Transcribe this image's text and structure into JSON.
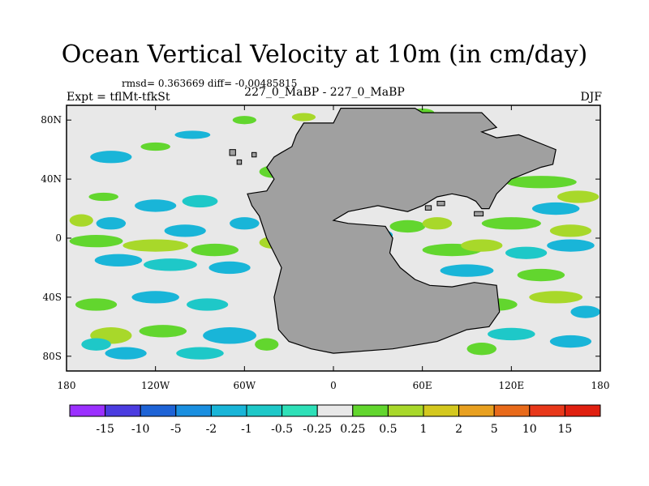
{
  "chart_data": {
    "type": "heatmap",
    "title": "Ocean Vertical Velocity at 10m (in cm/day)",
    "stats_line": "rmsd= 0.363669 diff= -0.00485815",
    "experiment_label": "Expt = tflMt-tfkSt",
    "comparison_label": "227_0_MaBP - 227_0_MaBP",
    "season_label": "DJF",
    "x_range": [
      -180,
      180
    ],
    "y_range": [
      -90,
      90
    ],
    "x_ticks": [
      {
        "value": -180,
        "label": "180"
      },
      {
        "value": -120,
        "label": "120W"
      },
      {
        "value": -60,
        "label": "60W"
      },
      {
        "value": 0,
        "label": "0"
      },
      {
        "value": 60,
        "label": "60E"
      },
      {
        "value": 120,
        "label": "120E"
      },
      {
        "value": 180,
        "label": "180"
      }
    ],
    "y_ticks": [
      {
        "value": 80,
        "label": "80N"
      },
      {
        "value": 40,
        "label": "40N"
      },
      {
        "value": 0,
        "label": "0"
      },
      {
        "value": -40,
        "label": "40S"
      },
      {
        "value": -80,
        "label": "80S"
      }
    ],
    "colorbar": {
      "levels": [
        "-15",
        "-10",
        "-5",
        "-2",
        "-1",
        "-0.5",
        "-0.25",
        "0.25",
        "0.5",
        "1",
        "2",
        "5",
        "10",
        "15"
      ],
      "colors": [
        "#9b30ff",
        "#4b3ce0",
        "#1e63d6",
        "#1a8fe0",
        "#19b5d8",
        "#1ec8c8",
        "#2ee0b8",
        "#e8e8e8",
        "#62d62e",
        "#a8d82a",
        "#d4c81e",
        "#e8a020",
        "#e86a1a",
        "#e8381a",
        "#e02010"
      ]
    },
    "land_color": "#a0a0a0",
    "background_color": "#e8e8e8"
  }
}
